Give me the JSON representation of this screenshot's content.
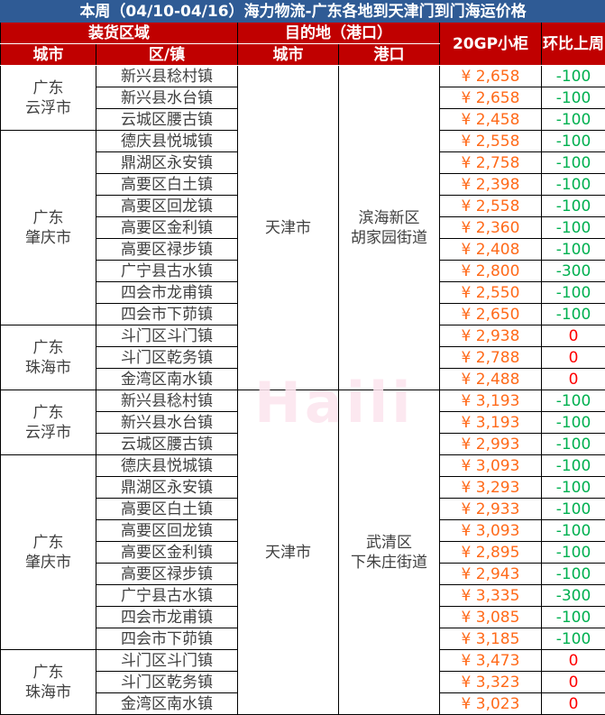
{
  "title": "本周（04/10-04/16）海力物流-广东各地到天津门到门海运价格",
  "headers": {
    "origin": "装货区域",
    "destination": "目的地（港口）",
    "price": "20GP小柜",
    "change": "环比上周",
    "city": "城市",
    "district": "区/镇",
    "dest_city": "城市",
    "port": "港口"
  },
  "watermark": "Haili",
  "colors": {
    "price": "#ff6a1a",
    "negative": "#00b050",
    "zero": "#ff0000",
    "header": "#c00000",
    "title": "#2f5b95"
  },
  "destinations": [
    {
      "city": "天津市",
      "port": "滨海新区\n胡家园街道",
      "groups": [
        {
          "city": "广东\n云浮市",
          "rows": [
            [
              "新兴县稔村镇",
              "¥ 2,658",
              "-100"
            ],
            [
              "新兴县水台镇",
              "¥ 2,658",
              "-100"
            ],
            [
              "云城区腰古镇",
              "¥ 2,458",
              "-100"
            ]
          ]
        },
        {
          "city": "广东\n肇庆市",
          "rows": [
            [
              "德庆县悦城镇",
              "¥ 2,558",
              "-100"
            ],
            [
              "鼎湖区永安镇",
              "¥ 2,758",
              "-100"
            ],
            [
              "高要区白土镇",
              "¥ 2,398",
              "-100"
            ],
            [
              "高要区回龙镇",
              "¥ 2,558",
              "-100"
            ],
            [
              "高要区金利镇",
              "¥ 2,360",
              "-100"
            ],
            [
              "高要区禄步镇",
              "¥ 2,408",
              "-100"
            ],
            [
              "广宁县古水镇",
              "¥ 2,800",
              "-300"
            ],
            [
              "四会市龙甫镇",
              "¥ 2,550",
              "-100"
            ],
            [
              "四会市下茆镇",
              "¥ 2,650",
              "-100"
            ]
          ]
        },
        {
          "city": "广东\n珠海市",
          "rows": [
            [
              "斗门区斗门镇",
              "¥ 2,938",
              "0"
            ],
            [
              "斗门区乾务镇",
              "¥ 2,788",
              "0"
            ],
            [
              "金湾区南水镇",
              "¥ 2,488",
              "0"
            ]
          ]
        }
      ]
    },
    {
      "city": "天津市",
      "port": "武清区\n下朱庄街道",
      "groups": [
        {
          "city": "广东\n云浮市",
          "rows": [
            [
              "新兴县稔村镇",
              "¥ 3,193",
              "-100"
            ],
            [
              "新兴县水台镇",
              "¥ 3,193",
              "-100"
            ],
            [
              "云城区腰古镇",
              "¥ 2,993",
              "-100"
            ]
          ]
        },
        {
          "city": "广东\n肇庆市",
          "rows": [
            [
              "德庆县悦城镇",
              "¥ 3,093",
              "-100"
            ],
            [
              "鼎湖区永安镇",
              "¥ 3,293",
              "-100"
            ],
            [
              "高要区白土镇",
              "¥ 2,933",
              "-100"
            ],
            [
              "高要区回龙镇",
              "¥ 3,093",
              "-100"
            ],
            [
              "高要区金利镇",
              "¥ 2,895",
              "-100"
            ],
            [
              "高要区禄步镇",
              "¥ 2,943",
              "-100"
            ],
            [
              "广宁县古水镇",
              "¥ 3,335",
              "-300"
            ],
            [
              "四会市龙甫镇",
              "¥ 3,085",
              "-100"
            ],
            [
              "四会市下茆镇",
              "¥ 3,185",
              "-100"
            ]
          ]
        },
        {
          "city": "广东\n珠海市",
          "rows": [
            [
              "斗门区斗门镇",
              "¥ 3,473",
              "0"
            ],
            [
              "斗门区乾务镇",
              "¥ 3,323",
              "0"
            ],
            [
              "金湾区南水镇",
              "¥ 3,023",
              "0"
            ]
          ]
        }
      ]
    }
  ]
}
